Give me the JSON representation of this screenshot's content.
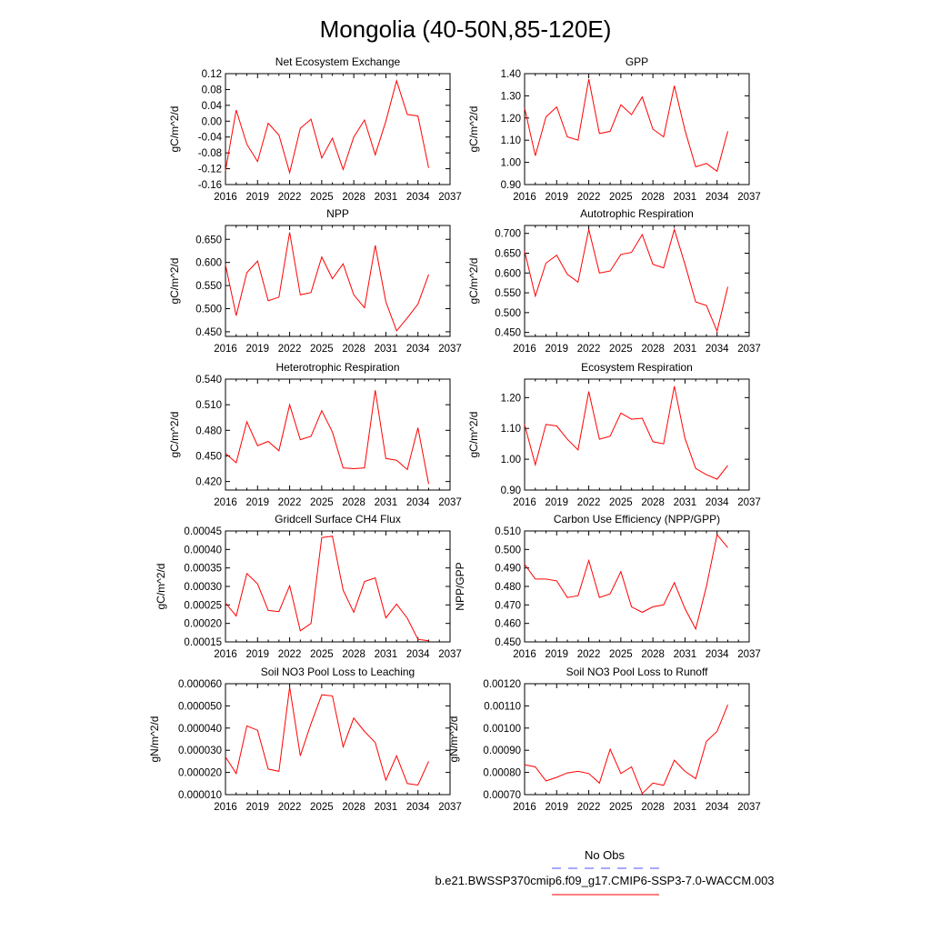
{
  "figure": {
    "title": "Mongolia (40-50N,85-120E)"
  },
  "legend": {
    "entries": [
      {
        "label": "No Obs",
        "color": "#5050ff",
        "style": "dashed"
      },
      {
        "label": "b.e21.BWSSP370cmip6.f09_g17.CMIP6-SSP3-7.0-WACCM.003",
        "color": "#ff0000",
        "style": "solid"
      }
    ]
  },
  "colors": {
    "series": "#ff0000",
    "axes": "#000000"
  },
  "chart_data": [
    {
      "type": "line",
      "title": "Net Ecosystem Exchange",
      "ylabel": "gC/m^2/d",
      "xlim": [
        2016,
        2037
      ],
      "ylim": [
        -0.16,
        0.12
      ],
      "xticks": [
        "2016",
        "2019",
        "2022",
        "2025",
        "2028",
        "2031",
        "2034",
        "2037"
      ],
      "yticks": [
        "-0.16",
        "-0.12",
        "-0.08",
        "-0.04",
        "0.00",
        "0.04",
        "0.08",
        "0.12"
      ],
      "x": [
        2016,
        2017,
        2018,
        2019,
        2020,
        2021,
        2022,
        2023,
        2024,
        2025,
        2026,
        2027,
        2028,
        2029,
        2030,
        2031,
        2032,
        2033,
        2034,
        2035
      ],
      "series": [
        {
          "values": [
            -0.125,
            0.028,
            -0.058,
            -0.102,
            -0.005,
            -0.035,
            -0.13,
            -0.018,
            0.005,
            -0.093,
            -0.043,
            -0.122,
            -0.04,
            0.003,
            -0.085,
            0.0,
            0.102,
            0.017,
            0.013,
            -0.118
          ]
        }
      ]
    },
    {
      "type": "line",
      "title": "GPP",
      "ylabel": "gC/m^2/d",
      "xlim": [
        2016,
        2037
      ],
      "ylim": [
        0.9,
        1.4
      ],
      "xticks": [
        "2016",
        "2019",
        "2022",
        "2025",
        "2028",
        "2031",
        "2034",
        "2037"
      ],
      "yticks": [
        "0.90",
        "1.00",
        "1.10",
        "1.20",
        "1.30",
        "1.40"
      ],
      "x": [
        2016,
        2017,
        2018,
        2019,
        2020,
        2021,
        2022,
        2023,
        2024,
        2025,
        2026,
        2027,
        2028,
        2029,
        2030,
        2031,
        2032,
        2033,
        2034,
        2035
      ],
      "series": [
        {
          "values": [
            1.245,
            1.03,
            1.205,
            1.25,
            1.115,
            1.1,
            1.375,
            1.13,
            1.14,
            1.26,
            1.215,
            1.295,
            1.15,
            1.115,
            1.345,
            1.145,
            0.98,
            0.995,
            0.96,
            1.14
          ]
        }
      ]
    },
    {
      "type": "line",
      "title": "NPP",
      "ylabel": "gC/m^2/d",
      "xlim": [
        2016,
        2037
      ],
      "ylim": [
        0.44,
        0.68
      ],
      "xticks": [
        "2016",
        "2019",
        "2022",
        "2025",
        "2028",
        "2031",
        "2034",
        "2037"
      ],
      "yticks": [
        "0.450",
        "0.500",
        "0.550",
        "0.600",
        "0.650"
      ],
      "x": [
        2016,
        2017,
        2018,
        2019,
        2020,
        2021,
        2022,
        2023,
        2024,
        2025,
        2026,
        2027,
        2028,
        2029,
        2030,
        2031,
        2032,
        2033,
        2034,
        2035
      ],
      "series": [
        {
          "values": [
            0.595,
            0.485,
            0.578,
            0.603,
            0.517,
            0.525,
            0.665,
            0.53,
            0.535,
            0.612,
            0.565,
            0.597,
            0.53,
            0.502,
            0.637,
            0.515,
            0.452,
            0.48,
            0.51,
            0.574
          ]
        }
      ]
    },
    {
      "type": "line",
      "title": "Autotrophic Respiration",
      "ylabel": "gC/m^2/d",
      "xlim": [
        2016,
        2037
      ],
      "ylim": [
        0.44,
        0.72
      ],
      "xticks": [
        "2016",
        "2019",
        "2022",
        "2025",
        "2028",
        "2031",
        "2034",
        "2037"
      ],
      "yticks": [
        "0.450",
        "0.500",
        "0.550",
        "0.600",
        "0.650",
        "0.700"
      ],
      "x": [
        2016,
        2017,
        2018,
        2019,
        2020,
        2021,
        2022,
        2023,
        2024,
        2025,
        2026,
        2027,
        2028,
        2029,
        2030,
        2031,
        2032,
        2033,
        2034,
        2035
      ],
      "series": [
        {
          "values": [
            0.655,
            0.542,
            0.625,
            0.645,
            0.597,
            0.577,
            0.71,
            0.6,
            0.605,
            0.647,
            0.652,
            0.697,
            0.622,
            0.613,
            0.71,
            0.622,
            0.527,
            0.518,
            0.453,
            0.565
          ]
        }
      ]
    },
    {
      "type": "line",
      "title": "Heterotrophic Respiration",
      "ylabel": "gC/m^2/d",
      "xlim": [
        2016,
        2037
      ],
      "ylim": [
        0.41,
        0.54
      ],
      "xticks": [
        "2016",
        "2019",
        "2022",
        "2025",
        "2028",
        "2031",
        "2034",
        "2037"
      ],
      "yticks": [
        "0.420",
        "0.450",
        "0.480",
        "0.510",
        "0.540"
      ],
      "x": [
        2016,
        2017,
        2018,
        2019,
        2020,
        2021,
        2022,
        2023,
        2024,
        2025,
        2026,
        2027,
        2028,
        2029,
        2030,
        2031,
        2032,
        2033,
        2034,
        2035
      ],
      "series": [
        {
          "values": [
            0.453,
            0.442,
            0.49,
            0.462,
            0.467,
            0.456,
            0.51,
            0.469,
            0.473,
            0.503,
            0.478,
            0.436,
            0.435,
            0.436,
            0.527,
            0.447,
            0.445,
            0.434,
            0.483,
            0.417
          ]
        }
      ]
    },
    {
      "type": "line",
      "title": "Ecosystem Respiration",
      "ylabel": "gC/m^2/d",
      "xlim": [
        2016,
        2037
      ],
      "ylim": [
        0.9,
        1.26
      ],
      "xticks": [
        "2016",
        "2019",
        "2022",
        "2025",
        "2028",
        "2031",
        "2034",
        "2037"
      ],
      "yticks": [
        "0.90",
        "1.00",
        "1.10",
        "1.20"
      ],
      "x": [
        2016,
        2017,
        2018,
        2019,
        2020,
        2021,
        2022,
        2023,
        2024,
        2025,
        2026,
        2027,
        2028,
        2029,
        2030,
        2031,
        2032,
        2033,
        2034,
        2035
      ],
      "series": [
        {
          "values": [
            1.112,
            0.982,
            1.113,
            1.108,
            1.065,
            1.03,
            1.22,
            1.065,
            1.075,
            1.15,
            1.13,
            1.133,
            1.057,
            1.05,
            1.237,
            1.068,
            0.97,
            0.95,
            0.935,
            0.98
          ]
        }
      ]
    },
    {
      "type": "line",
      "title": "Gridcell Surface CH4 Flux",
      "ylabel": "gC/m^2/d",
      "xlim": [
        2016,
        2037
      ],
      "ylim": [
        0.00015,
        0.00045
      ],
      "xticks": [
        "2016",
        "2019",
        "2022",
        "2025",
        "2028",
        "2031",
        "2034",
        "2037"
      ],
      "yticks": [
        "0.00015",
        "0.00020",
        "0.00025",
        "0.00030",
        "0.00035",
        "0.00040",
        "0.00045"
      ],
      "x": [
        2016,
        2017,
        2018,
        2019,
        2020,
        2021,
        2022,
        2023,
        2024,
        2025,
        2026,
        2027,
        2028,
        2029,
        2030,
        2031,
        2032,
        2033,
        2034,
        2035
      ],
      "series": [
        {
          "values": [
            0.000255,
            0.00022,
            0.000335,
            0.000307,
            0.000235,
            0.000232,
            0.000302,
            0.00018,
            0.0002,
            0.000432,
            0.000436,
            0.00029,
            0.00023,
            0.000313,
            0.000323,
            0.000215,
            0.000252,
            0.000214,
            0.000157,
            0.000153
          ]
        }
      ]
    },
    {
      "type": "line",
      "title": "Carbon Use Efficiency (NPP/GPP)",
      "ylabel": "NPP/GPP",
      "xlim": [
        2016,
        2037
      ],
      "ylim": [
        0.45,
        0.51
      ],
      "xticks": [
        "2016",
        "2019",
        "2022",
        "2025",
        "2028",
        "2031",
        "2034",
        "2037"
      ],
      "yticks": [
        "0.450",
        "0.460",
        "0.470",
        "0.480",
        "0.490",
        "0.500",
        "0.510"
      ],
      "x": [
        2016,
        2017,
        2018,
        2019,
        2020,
        2021,
        2022,
        2023,
        2024,
        2025,
        2026,
        2027,
        2028,
        2029,
        2030,
        2031,
        2032,
        2033,
        2034,
        2035
      ],
      "series": [
        {
          "values": [
            0.492,
            0.484,
            0.484,
            0.483,
            0.474,
            0.475,
            0.494,
            0.474,
            0.476,
            0.488,
            0.469,
            0.466,
            0.469,
            0.47,
            0.482,
            0.468,
            0.457,
            0.48,
            0.508,
            0.501
          ]
        }
      ]
    },
    {
      "type": "line",
      "title": "Soil NO3 Pool Loss to Leaching",
      "ylabel": "gN/m^2/d",
      "xlim": [
        2016,
        2037
      ],
      "ylim": [
        1e-05,
        6e-05
      ],
      "xticks": [
        "2016",
        "2019",
        "2022",
        "2025",
        "2028",
        "2031",
        "2034",
        "2037"
      ],
      "yticks": [
        "0.000010",
        "0.000020",
        "0.000030",
        "0.000040",
        "0.000050",
        "0.000060"
      ],
      "x": [
        2016,
        2017,
        2018,
        2019,
        2020,
        2021,
        2022,
        2023,
        2024,
        2025,
        2026,
        2027,
        2028,
        2029,
        2030,
        2031,
        2032,
        2033,
        2034,
        2035
      ],
      "series": [
        {
          "values": [
            2.7e-05,
            1.95e-05,
            4.1e-05,
            3.9e-05,
            2.15e-05,
            2.05e-05,
            5.85e-05,
            2.75e-05,
            4.2e-05,
            5.5e-05,
            5.45e-05,
            3.15e-05,
            4.45e-05,
            3.85e-05,
            3.35e-05,
            1.65e-05,
            2.75e-05,
            1.5e-05,
            1.43e-05,
            2.5e-05
          ]
        }
      ]
    },
    {
      "type": "line",
      "title": "Soil NO3 Pool Loss to Runoff",
      "ylabel": "gN/m^2/d",
      "xlim": [
        2016,
        2037
      ],
      "ylim": [
        0.0007,
        0.0012
      ],
      "xticks": [
        "2016",
        "2019",
        "2022",
        "2025",
        "2028",
        "2031",
        "2034",
        "2037"
      ],
      "yticks": [
        "0.00070",
        "0.00080",
        "0.00090",
        "0.00100",
        "0.00110",
        "0.00120"
      ],
      "x": [
        2016,
        2017,
        2018,
        2019,
        2020,
        2021,
        2022,
        2023,
        2024,
        2025,
        2026,
        2027,
        2028,
        2029,
        2030,
        2031,
        2032,
        2033,
        2034,
        2035
      ],
      "series": [
        {
          "values": [
            0.000835,
            0.000825,
            0.000762,
            0.000778,
            0.000798,
            0.000805,
            0.000795,
            0.000752,
            0.000905,
            0.000795,
            0.000825,
            0.000705,
            0.000752,
            0.000742,
            0.000855,
            0.000805,
            0.000772,
            0.00094,
            0.000985,
            0.001105
          ]
        }
      ]
    }
  ]
}
